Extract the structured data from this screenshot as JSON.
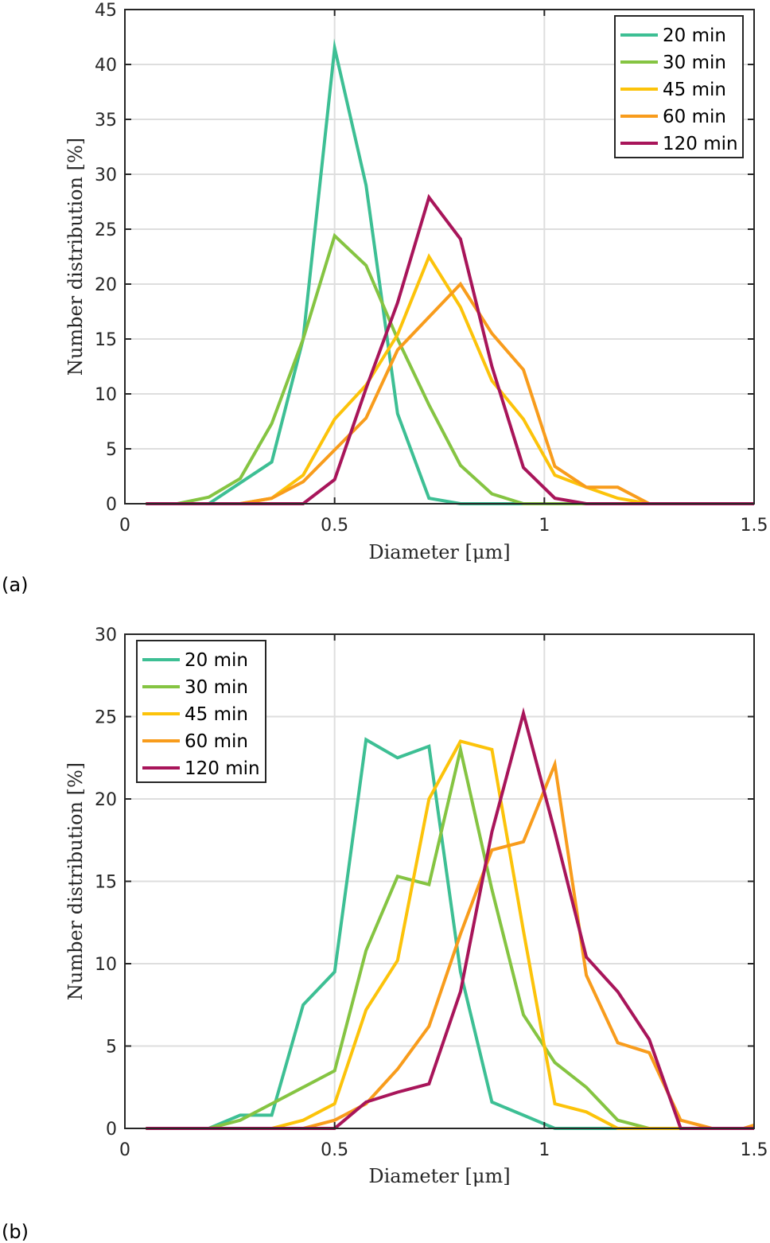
{
  "chart_data": [
    {
      "type": "line",
      "panel_label": "(a)",
      "xlabel": "Diameter [μm]",
      "ylabel": "Number distribution [%]",
      "xlim": [
        0,
        1.5
      ],
      "ylim": [
        0,
        45
      ],
      "xticks": [
        0,
        0.5,
        1,
        1.5
      ],
      "xtick_labels": [
        "0",
        "0.5",
        "1",
        "1.5"
      ],
      "yticks": [
        0,
        5,
        10,
        15,
        20,
        25,
        30,
        35,
        40,
        45
      ],
      "ytick_labels": [
        "0",
        "5",
        "10",
        "15",
        "20",
        "25",
        "30",
        "35",
        "40",
        "45"
      ],
      "grid": "on",
      "legend_position": "top-right",
      "x": [
        0.05,
        0.125,
        0.2,
        0.275,
        0.35,
        0.425,
        0.5,
        0.575,
        0.65,
        0.725,
        0.8,
        0.875,
        0.95,
        1.025,
        1.1,
        1.175,
        1.25,
        1.325,
        1.4,
        1.475,
        1.5
      ],
      "series": [
        {
          "name": "20 min",
          "color": "#3dbf94",
          "values": [
            0,
            0,
            0,
            1.9,
            3.8,
            15,
            41.5,
            29,
            8.2,
            0.5,
            0,
            0,
            0,
            0,
            0,
            0,
            0,
            0,
            0,
            0,
            0
          ]
        },
        {
          "name": "30 min",
          "color": "#85c442",
          "values": [
            0,
            0,
            0.6,
            2.3,
            7.3,
            15,
            24.4,
            21.7,
            15,
            9,
            3.5,
            0.9,
            0,
            0,
            0,
            0,
            0,
            0,
            0,
            0,
            0
          ]
        },
        {
          "name": "45 min",
          "color": "#fcc30a",
          "values": [
            0,
            0,
            0,
            0,
            0.5,
            2.6,
            7.7,
            10.8,
            15.4,
            22.5,
            17.9,
            11.2,
            7.7,
            2.6,
            1.5,
            0.5,
            0,
            0,
            0,
            0,
            0
          ]
        },
        {
          "name": "60 min",
          "color": "#f89c1c",
          "values": [
            0,
            0,
            0,
            0,
            0.5,
            2,
            4.9,
            7.8,
            14,
            17,
            20,
            15.5,
            12.2,
            3.4,
            1.5,
            1.5,
            0,
            0,
            0,
            0,
            0
          ]
        },
        {
          "name": "120 min",
          "color": "#a8155a",
          "values": [
            0,
            0,
            0,
            0,
            0,
            0,
            2.2,
            10.5,
            18.3,
            27.9,
            24.1,
            12.5,
            3.3,
            0.5,
            0,
            0,
            0,
            0,
            0,
            0,
            0
          ]
        }
      ]
    },
    {
      "type": "line",
      "panel_label": "(b)",
      "xlabel": "Diameter [μm]",
      "ylabel": "Number distribution [%]",
      "xlim": [
        0,
        1.5
      ],
      "ylim": [
        0,
        30
      ],
      "xticks": [
        0,
        0.5,
        1,
        1.5
      ],
      "xtick_labels": [
        "0",
        "0.5",
        "1",
        "1.5"
      ],
      "yticks": [
        0,
        5,
        10,
        15,
        20,
        25,
        30
      ],
      "ytick_labels": [
        "0",
        "5",
        "10",
        "15",
        "20",
        "25",
        "30"
      ],
      "grid": "on",
      "legend_position": "top-left",
      "x": [
        0.05,
        0.125,
        0.2,
        0.275,
        0.35,
        0.425,
        0.5,
        0.575,
        0.65,
        0.725,
        0.8,
        0.875,
        0.95,
        1.025,
        1.1,
        1.175,
        1.25,
        1.325,
        1.4,
        1.475,
        1.5
      ],
      "series": [
        {
          "name": "20 min",
          "color": "#3dbf94",
          "values": [
            0,
            0,
            0,
            0.8,
            0.8,
            7.5,
            9.5,
            23.6,
            22.5,
            23.2,
            9.5,
            1.6,
            0.8,
            0,
            0,
            0,
            0,
            0,
            0,
            0,
            0
          ]
        },
        {
          "name": "30 min",
          "color": "#85c442",
          "values": [
            0,
            0,
            0,
            0.5,
            1.5,
            2.5,
            3.5,
            10.8,
            15.3,
            14.8,
            23,
            14.5,
            6.9,
            4,
            2.5,
            0.5,
            0,
            0,
            0,
            0,
            0
          ]
        },
        {
          "name": "45 min",
          "color": "#fcc30a",
          "values": [
            0,
            0,
            0,
            0,
            0,
            0.5,
            1.5,
            7.2,
            10.2,
            20,
            23.5,
            23,
            12,
            1.5,
            1,
            0,
            0,
            0,
            0,
            0,
            0
          ]
        },
        {
          "name": "60 min",
          "color": "#f89c1c",
          "values": [
            0,
            0,
            0,
            0,
            0,
            0,
            0.5,
            1.5,
            3.6,
            6.2,
            11.8,
            16.9,
            17.4,
            22.1,
            9.3,
            5.2,
            4.6,
            0.5,
            0,
            0,
            0.2
          ]
        },
        {
          "name": "120 min",
          "color": "#a8155a",
          "values": [
            0,
            0,
            0,
            0,
            0,
            0,
            0,
            1.6,
            2.2,
            2.7,
            8.3,
            18,
            25.2,
            18,
            10.4,
            8.3,
            5.4,
            0,
            0,
            0,
            0
          ]
        }
      ]
    }
  ]
}
